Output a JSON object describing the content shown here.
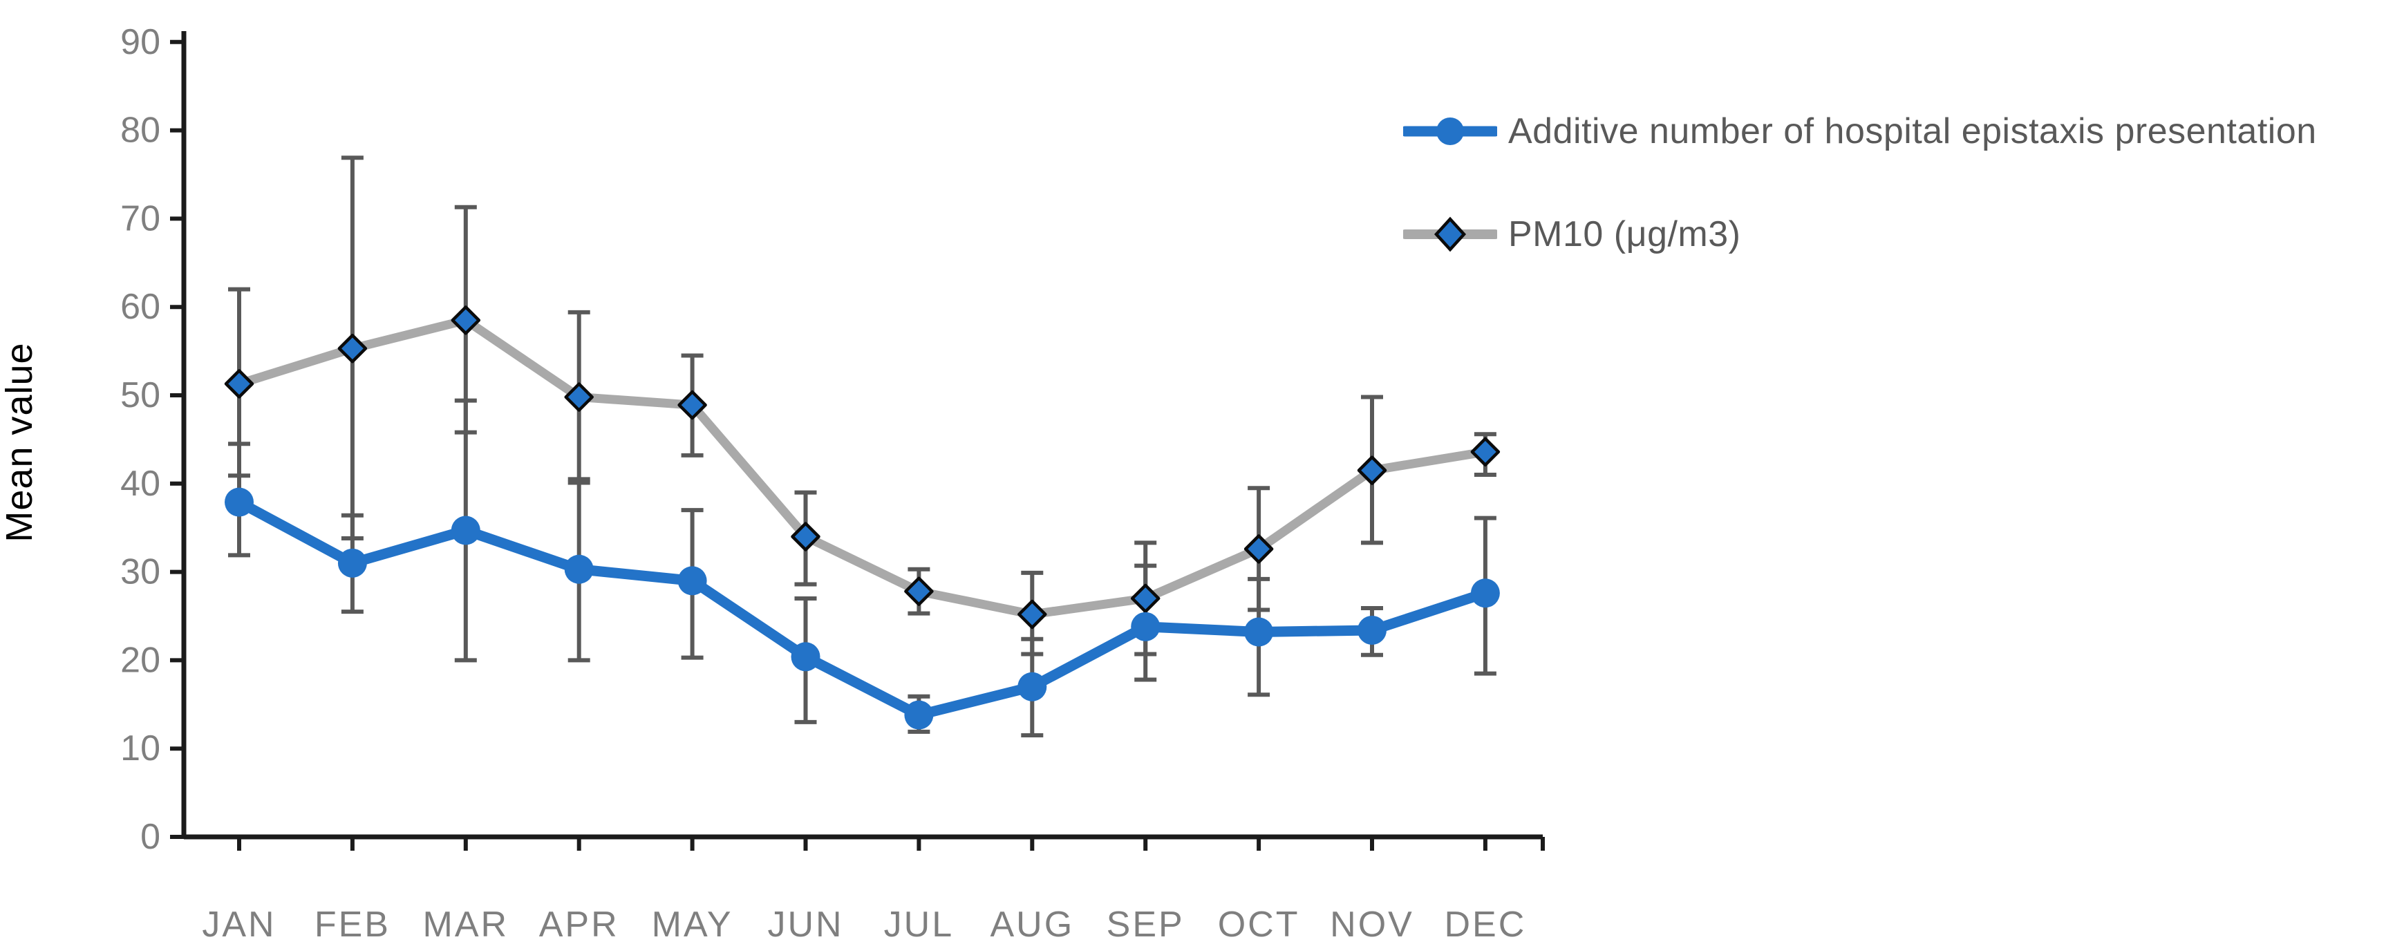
{
  "chart_data": {
    "type": "line",
    "title": "",
    "xlabel": "",
    "ylabel": "Mean value",
    "ylim": [
      0,
      90
    ],
    "ytick_step": 10,
    "yticks": [
      0,
      10,
      20,
      30,
      40,
      50,
      60,
      70,
      80,
      90
    ],
    "grid": false,
    "legend_position": "top-right",
    "error_bars": true,
    "categories": [
      "JAN",
      "FEB",
      "MAR",
      "APR",
      "MAY",
      "JUN",
      "JUL",
      "AUG",
      "SEP",
      "OCT",
      "NOV",
      "DEC"
    ],
    "series": [
      {
        "name": "Additive number of hospital epistaxis presentation",
        "marker": "circle",
        "color": "#2373C8",
        "values": [
          37.9,
          31.0,
          34.7,
          30.3,
          29.0,
          20.4,
          13.8,
          17.0,
          23.8,
          23.2,
          23.4,
          27.6
        ],
        "err_upper": [
          44.5,
          36.4,
          49.4,
          40.5,
          37.0,
          27.0,
          15.9,
          22.4,
          30.7,
          29.2,
          25.9,
          36.1
        ],
        "err_lower": [
          31.9,
          25.5,
          20.0,
          20.0,
          20.3,
          13.0,
          11.9,
          11.5,
          17.8,
          16.1,
          20.6,
          18.5
        ]
      },
      {
        "name": "PM10 (μg/m3)",
        "marker": "diamond",
        "color": "#A9A9A9",
        "marker_fill": "#2373C8",
        "values": [
          51.3,
          55.3,
          58.5,
          49.8,
          48.9,
          34.0,
          27.8,
          25.2,
          27.0,
          32.6,
          41.5,
          43.6
        ],
        "err_upper": [
          62.0,
          76.9,
          71.3,
          59.4,
          54.5,
          39.0,
          30.3,
          29.9,
          33.3,
          39.5,
          49.8,
          45.6
        ],
        "err_lower": [
          40.9,
          33.8,
          45.8,
          40.1,
          43.2,
          28.6,
          25.3,
          20.7,
          20.7,
          25.7,
          33.3,
          41.0
        ]
      }
    ],
    "colors": {
      "axis": "#1b1b1b",
      "tick_label": "#7f7f7f",
      "axis_title": "#000000",
      "legend_text": "#595959",
      "error_bar": "#595959",
      "diamond_stroke": "#0b0b0b"
    }
  }
}
